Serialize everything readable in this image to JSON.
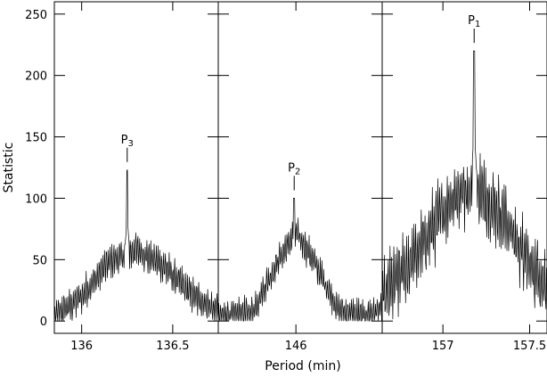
{
  "chart_data": {
    "type": "line",
    "ylabel": "Statistic",
    "xlabel": "Period (min)",
    "ylim": [
      -10,
      260
    ],
    "yticks": [
      0,
      50,
      100,
      150,
      200,
      250
    ],
    "grid": false,
    "panels": [
      {
        "xlim": [
          135.85,
          136.75
        ],
        "xticks": [
          136,
          136.5
        ],
        "xtick_labels": [
          "136",
          "136.5"
        ],
        "peak": {
          "label": "P",
          "sub": "3",
          "x": 136.25,
          "y": 123
        },
        "envelope": [
          [
            135.85,
            3
          ],
          [
            136.0,
            20
          ],
          [
            136.15,
            48
          ],
          [
            136.3,
            58
          ],
          [
            136.45,
            45
          ],
          [
            136.6,
            22
          ],
          [
            136.75,
            8
          ]
        ],
        "noise": 14
      },
      {
        "xlim": [
          145.55,
          146.5
        ],
        "xticks": [
          146
        ],
        "xtick_labels": [
          "146"
        ],
        "peak": {
          "label": "P",
          "sub": "2",
          "x": 145.99,
          "y": 100
        },
        "envelope": [
          [
            145.55,
            3
          ],
          [
            145.75,
            8
          ],
          [
            145.9,
            50
          ],
          [
            146.0,
            72
          ],
          [
            146.1,
            50
          ],
          [
            146.25,
            8
          ],
          [
            146.4,
            4
          ],
          [
            146.5,
            10
          ]
        ],
        "noise": 13
      },
      {
        "xlim": [
          156.65,
          157.6
        ],
        "xticks": [
          157,
          157.5
        ],
        "xtick_labels": [
          "157",
          "157.5"
        ],
        "peak": {
          "label": "P",
          "sub": "1",
          "x": 157.18,
          "y": 220
        },
        "envelope": [
          [
            156.65,
            18
          ],
          [
            156.85,
            55
          ],
          [
            157.05,
            100
          ],
          [
            157.18,
            110
          ],
          [
            157.35,
            85
          ],
          [
            157.5,
            45
          ],
          [
            157.6,
            30
          ]
        ],
        "noise": 30
      }
    ]
  }
}
